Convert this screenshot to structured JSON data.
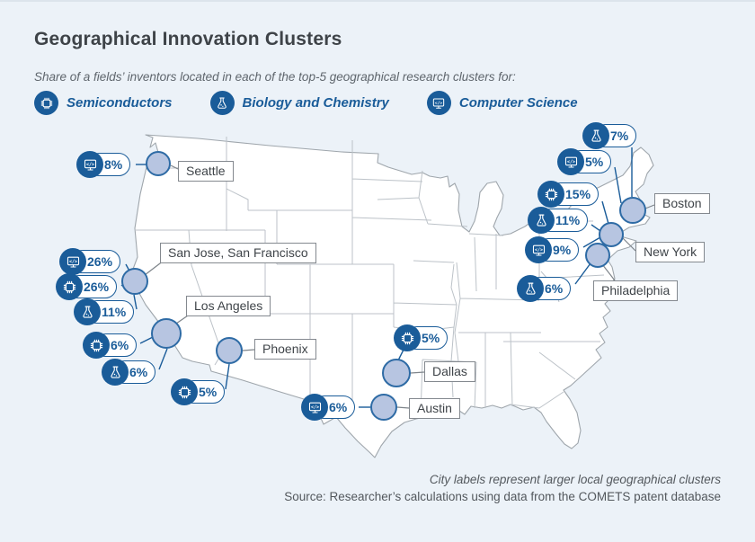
{
  "title": "Geographical Innovation Clusters",
  "subtitle": "Share of a fields’ inventors located in each of the top-5 geographical research clusters for:",
  "legend": [
    {
      "field": "semiconductors",
      "icon": "chip-icon",
      "label": "Semiconductors"
    },
    {
      "field": "biology-chemistry",
      "icon": "flask-icon",
      "label": "Biology and Chemistry"
    },
    {
      "field": "computer-science",
      "icon": "code-monitor-icon",
      "label": "Computer Science"
    }
  ],
  "cities": [
    {
      "name": "Seattle"
    },
    {
      "name": "San Jose, San Francisco"
    },
    {
      "name": "Los Angeles"
    },
    {
      "name": "Phoenix"
    },
    {
      "name": "Dallas"
    },
    {
      "name": "Austin"
    },
    {
      "name": "Boston"
    },
    {
      "name": "New York"
    },
    {
      "name": "Philadelphia"
    }
  ],
  "badges": [
    {
      "city": "Seattle",
      "field": "computer-science",
      "value": "8%"
    },
    {
      "city": "San Jose, San Francisco",
      "field": "computer-science",
      "value": "26%"
    },
    {
      "city": "San Jose, San Francisco",
      "field": "semiconductors",
      "value": "26%"
    },
    {
      "city": "San Jose, San Francisco",
      "field": "biology-chemistry",
      "value": "11%"
    },
    {
      "city": "Los Angeles",
      "field": "semiconductors",
      "value": "6%"
    },
    {
      "city": "Los Angeles",
      "field": "biology-chemistry",
      "value": "6%"
    },
    {
      "city": "Phoenix",
      "field": "semiconductors",
      "value": "5%"
    },
    {
      "city": "Austin",
      "field": "computer-science",
      "value": "6%"
    },
    {
      "city": "Dallas",
      "field": "semiconductors",
      "value": "5%"
    },
    {
      "city": "Boston",
      "field": "biology-chemistry",
      "value": "7%"
    },
    {
      "city": "Boston",
      "field": "computer-science",
      "value": "5%"
    },
    {
      "city": "New York",
      "field": "semiconductors",
      "value": "15%"
    },
    {
      "city": "New York",
      "field": "biology-chemistry",
      "value": "11%"
    },
    {
      "city": "New York",
      "field": "computer-science",
      "value": "9%"
    },
    {
      "city": "Philadelphia",
      "field": "biology-chemistry",
      "value": "6%"
    }
  ],
  "notes": {
    "caption": "City labels represent larger local geographical clusters",
    "source": "Source: Researcher’s calculations using data from the COMETS patent database"
  },
  "colors": {
    "accent_blue": "#1A5C99",
    "city_fill": "#B7C5E1",
    "city_stroke": "#2E6BA5",
    "background": "#ECF2F8",
    "map_fill": "#FFFFFF",
    "map_outline": "#9FA6AC",
    "state_border": "#BCC2C8",
    "label_border": "#84898F",
    "text_dark": "#3E4348",
    "text_gray": "#53585D"
  },
  "chart_data": {
    "type": "map",
    "region": "United States",
    "title": "Geographical Innovation Clusters",
    "subtitle": "Share of a fields’ inventors located in each of the top-5 geographical research clusters for:",
    "unit": "%",
    "series": [
      {
        "name": "Semiconductors",
        "points": [
          {
            "city": "San Jose, San Francisco",
            "value": 26
          },
          {
            "city": "New York",
            "value": 15
          },
          {
            "city": "Los Angeles",
            "value": 6
          },
          {
            "city": "Phoenix",
            "value": 5
          },
          {
            "city": "Dallas",
            "value": 5
          }
        ]
      },
      {
        "name": "Biology and Chemistry",
        "points": [
          {
            "city": "San Jose, San Francisco",
            "value": 11
          },
          {
            "city": "New York",
            "value": 11
          },
          {
            "city": "Boston",
            "value": 7
          },
          {
            "city": "Los Angeles",
            "value": 6
          },
          {
            "city": "Philadelphia",
            "value": 6
          }
        ]
      },
      {
        "name": "Computer Science",
        "points": [
          {
            "city": "San Jose, San Francisco",
            "value": 26
          },
          {
            "city": "New York",
            "value": 9
          },
          {
            "city": "Seattle",
            "value": 8
          },
          {
            "city": "Austin",
            "value": 6
          },
          {
            "city": "Boston",
            "value": 5
          }
        ]
      }
    ],
    "legend_position": "top",
    "notes": [
      "City labels represent larger local geographical clusters",
      "Source: Researcher’s calculations using data from the COMETS patent database"
    ]
  }
}
